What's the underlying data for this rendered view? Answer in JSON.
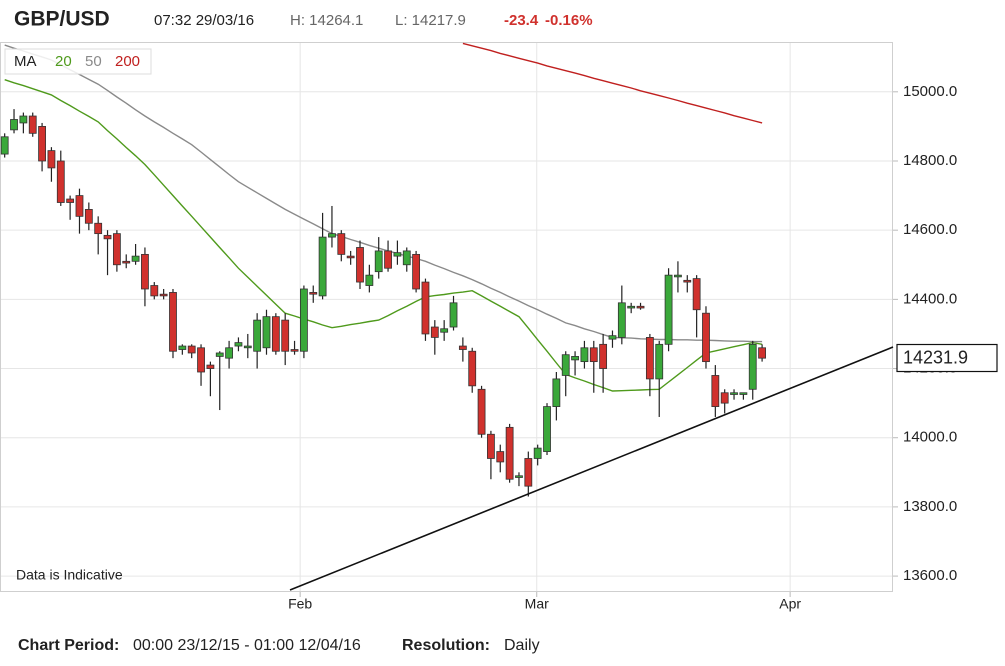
{
  "chart_data": {
    "type": "candlestick",
    "title": "GBP/USD",
    "timestamp": "07:32 29/03/16",
    "high_text": "H: 14264.1",
    "low_text": "L: 14217.9",
    "change": "-23.4",
    "change_pct": "-0.16%",
    "legend_title": "MA",
    "footnote": "Data is Indicative",
    "period_label": "Chart Period:",
    "period": "00:00 23/12/15 - 01:00 12/04/16",
    "resolution_label": "Resolution:",
    "resolution": "Daily",
    "last_price": 14231.9,
    "up_color": "#3aa83a",
    "down_color": "#d0312d",
    "xlim": [
      -0.5,
      95
    ],
    "xticks": [
      {
        "value": 31.6,
        "label": "Feb"
      },
      {
        "value": 56.9,
        "label": "Mar"
      },
      {
        "value": 84,
        "label": "Apr"
      }
    ],
    "ylim": [
      13554,
      15144
    ],
    "yticks": [
      {
        "value": 13600,
        "label": "13600.0"
      },
      {
        "value": 13800,
        "label": "13800.0"
      },
      {
        "value": 14000,
        "label": "14000.0"
      },
      {
        "value": 14200,
        "label": "14200.0"
      },
      {
        "value": 14400,
        "label": "14400.0"
      },
      {
        "value": 14600,
        "label": "14600.0"
      },
      {
        "value": 14800,
        "label": "14800.0"
      },
      {
        "value": 15000,
        "label": "15000.0"
      }
    ],
    "grid": true,
    "candles": [
      [
        14820,
        14880,
        14810,
        14870
      ],
      [
        14890,
        14950,
        14880,
        14920
      ],
      [
        14910,
        14940,
        14880,
        14930
      ],
      [
        14930,
        14940,
        14870,
        14880
      ],
      [
        14900,
        14910,
        14770,
        14800
      ],
      [
        14830,
        14840,
        14740,
        14780
      ],
      [
        14800,
        14830,
        14670,
        14680
      ],
      [
        14690,
        14700,
        14630,
        14680
      ],
      [
        14700,
        14720,
        14590,
        14640
      ],
      [
        14660,
        14680,
        14600,
        14620
      ],
      [
        14620,
        14640,
        14530,
        14590
      ],
      [
        14585,
        14600,
        14470,
        14575
      ],
      [
        14590,
        14600,
        14480,
        14500
      ],
      [
        14510,
        14530,
        14490,
        14505
      ],
      [
        14510,
        14560,
        14500,
        14525
      ],
      [
        14530,
        14550,
        14380,
        14430
      ],
      [
        14440,
        14450,
        14400,
        14410
      ],
      [
        14415,
        14430,
        14400,
        14410
      ],
      [
        14420,
        14430,
        14230,
        14250
      ],
      [
        14255,
        14270,
        14240,
        14265
      ],
      [
        14265,
        14270,
        14230,
        14245
      ],
      [
        14260,
        14270,
        14150,
        14190
      ],
      [
        14210,
        14220,
        14120,
        14200
      ],
      [
        14235,
        14250,
        14080,
        14245
      ],
      [
        14230,
        14280,
        14200,
        14260
      ],
      [
        14265,
        14290,
        14250,
        14275
      ],
      [
        14260,
        14300,
        14230,
        14265
      ],
      [
        14250,
        14360,
        14200,
        14340
      ],
      [
        14260,
        14370,
        14240,
        14350
      ],
      [
        14350,
        14360,
        14240,
        14250
      ],
      [
        14340,
        14360,
        14210,
        14250
      ],
      [
        14255,
        14280,
        14240,
        14250
      ],
      [
        14250,
        14440,
        14230,
        14430
      ],
      [
        14420,
        14440,
        14390,
        14415
      ],
      [
        14410,
        14650,
        14400,
        14580
      ],
      [
        14580,
        14670,
        14550,
        14590
      ],
      [
        14590,
        14600,
        14510,
        14530
      ],
      [
        14525,
        14540,
        14500,
        14520
      ],
      [
        14550,
        14570,
        14430,
        14450
      ],
      [
        14440,
        14500,
        14420,
        14470
      ],
      [
        14480,
        14580,
        14460,
        14540
      ],
      [
        14540,
        14570,
        14480,
        14490
      ],
      [
        14525,
        14570,
        14500,
        14535
      ],
      [
        14500,
        14550,
        14480,
        14540
      ],
      [
        14530,
        14540,
        14420,
        14430
      ],
      [
        14450,
        14460,
        14280,
        14300
      ],
      [
        14320,
        14340,
        14240,
        14290
      ],
      [
        14305,
        14340,
        14280,
        14315
      ],
      [
        14320,
        14410,
        14310,
        14390
      ],
      [
        14265,
        14290,
        14220,
        14255
      ],
      [
        14250,
        14260,
        14130,
        14150
      ],
      [
        14140,
        14150,
        14000,
        14010
      ],
      [
        14010,
        14020,
        13880,
        13940
      ],
      [
        13960,
        13980,
        13900,
        13930
      ],
      [
        14030,
        14040,
        13870,
        13880
      ],
      [
        13885,
        13900,
        13860,
        13890
      ],
      [
        13940,
        13960,
        13830,
        13860
      ],
      [
        13940,
        13980,
        13920,
        13970
      ],
      [
        13960,
        14100,
        13950,
        14090
      ],
      [
        14090,
        14190,
        14050,
        14170
      ],
      [
        14180,
        14250,
        14120,
        14240
      ],
      [
        14225,
        14250,
        14180,
        14235
      ],
      [
        14220,
        14280,
        14200,
        14260
      ],
      [
        14260,
        14280,
        14130,
        14220
      ],
      [
        14270,
        14300,
        14130,
        14200
      ],
      [
        14285,
        14310,
        14260,
        14295
      ],
      [
        14290,
        14440,
        14270,
        14390
      ],
      [
        14375,
        14390,
        14360,
        14380
      ],
      [
        14380,
        14390,
        14370,
        14375
      ],
      [
        14290,
        14300,
        14120,
        14170
      ],
      [
        14170,
        14280,
        14060,
        14270
      ],
      [
        14270,
        14490,
        14250,
        14470
      ],
      [
        14465,
        14510,
        14420,
        14470
      ],
      [
        14455,
        14470,
        14420,
        14450
      ],
      [
        14460,
        14470,
        14290,
        14370
      ],
      [
        14360,
        14380,
        14200,
        14220
      ],
      [
        14180,
        14210,
        14060,
        14090
      ],
      [
        14130,
        14140,
        14070,
        14100
      ],
      [
        14125,
        14140,
        14110,
        14130
      ],
      [
        14125,
        14130,
        14110,
        14130
      ],
      [
        14140,
        14280,
        14110,
        14270
      ],
      [
        14260,
        14270,
        14220,
        14230
      ]
    ],
    "series": [
      {
        "name": "20",
        "color": "#4f9a1c",
        "values": [
          15035,
          15026,
          15018,
          15009,
          15000,
          14991,
          14975,
          14960,
          14944,
          14929,
          14913,
          14888,
          14864,
          14839,
          14815,
          14790,
          14760,
          14730,
          14700,
          14670,
          14640,
          14610,
          14580,
          14550,
          14520,
          14490,
          14464,
          14438,
          14412,
          14386,
          14360,
          14352,
          14343,
          14335,
          14326,
          14318,
          14322,
          14327,
          14331,
          14336,
          14340,
          14353,
          14367,
          14380,
          14394,
          14407,
          14411,
          14414,
          14418,
          14421,
          14425,
          14410,
          14395,
          14380,
          14365,
          14350,
          14317,
          14283,
          14250,
          14216,
          14183,
          14173,
          14164,
          14154,
          14145,
          14135,
          14136,
          14137,
          14138,
          14139,
          14140,
          14161,
          14182,
          14203,
          14224,
          14245,
          14251,
          14257,
          14263,
          14269,
          14275,
          14270
        ]
      },
      {
        "name": "50",
        "color": "#8a8a8a",
        "values": [
          15135,
          15126,
          15118,
          15109,
          15101,
          15092,
          15078,
          15064,
          15050,
          15036,
          15022,
          15004,
          14985,
          14967,
          14948,
          14930,
          14913,
          14897,
          14880,
          14864,
          14847,
          14826,
          14804,
          14783,
          14761,
          14740,
          14724,
          14708,
          14692,
          14676,
          14660,
          14646,
          14632,
          14618,
          14604,
          14590,
          14582,
          14573,
          14565,
          14556,
          14548,
          14540,
          14533,
          14525,
          14518,
          14510,
          14499,
          14489,
          14478,
          14468,
          14457,
          14445,
          14432,
          14420,
          14407,
          14395,
          14382,
          14370,
          14357,
          14345,
          14332,
          14324,
          14315,
          14307,
          14298,
          14290,
          14289,
          14288,
          14286,
          14285,
          14284,
          14284,
          14283,
          14283,
          14282,
          14282,
          14281,
          14280,
          14279,
          14279,
          14278,
          14278
        ]
      },
      {
        "name": "200",
        "color": "#c0201f",
        "values": [
          null,
          null,
          null,
          null,
          null,
          null,
          null,
          null,
          null,
          null,
          null,
          null,
          null,
          null,
          null,
          null,
          null,
          null,
          null,
          null,
          null,
          null,
          null,
          null,
          null,
          null,
          null,
          null,
          null,
          null,
          null,
          null,
          null,
          null,
          null,
          null,
          null,
          null,
          null,
          null,
          null,
          null,
          null,
          null,
          null,
          null,
          null,
          null,
          null,
          15140,
          15133,
          15126,
          15119,
          15111,
          15104,
          15097,
          15090,
          15083,
          15075,
          15068,
          15061,
          15054,
          15047,
          15039,
          15032,
          15025,
          15018,
          15011,
          15003,
          14996,
          14989,
          14982,
          14975,
          14967,
          14960,
          14953,
          14946,
          14939,
          14931,
          14924,
          14917,
          14910
        ]
      }
    ]
  }
}
